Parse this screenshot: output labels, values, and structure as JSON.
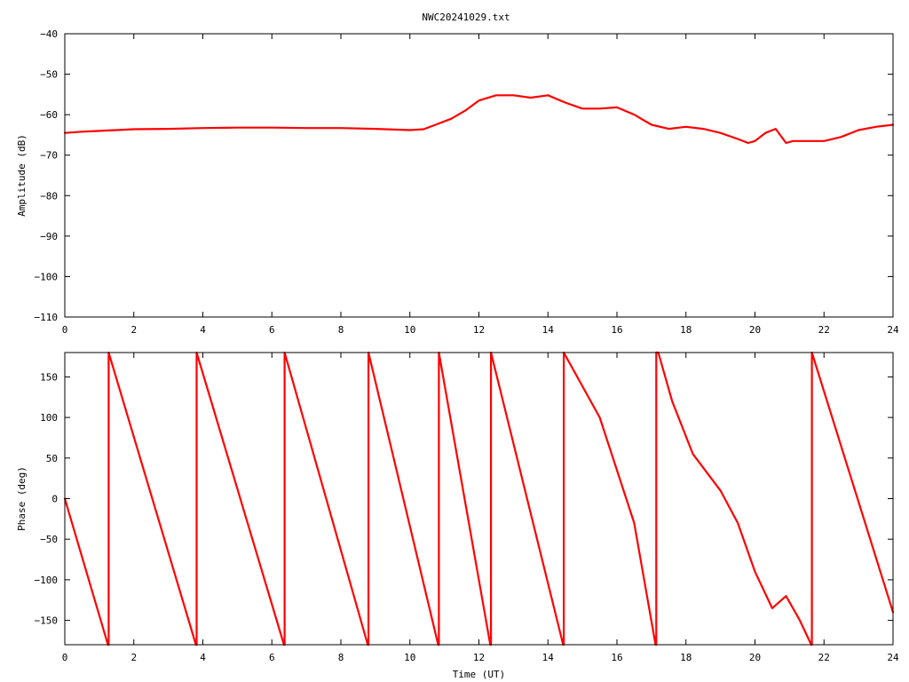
{
  "chart_title": "NWC20241029.txt",
  "chart_data": [
    {
      "type": "line",
      "title": "NWC20241029.txt",
      "xlabel": "",
      "ylabel": "Amplitude (dB)",
      "xlim": [
        0,
        24
      ],
      "ylim": [
        -110,
        -40
      ],
      "xticks": [
        0,
        2,
        4,
        6,
        8,
        10,
        12,
        14,
        16,
        18,
        20,
        22,
        24
      ],
      "yticks": [
        -40,
        -50,
        -60,
        -70,
        -80,
        -90,
        -100,
        -110
      ],
      "grid": false,
      "series": [
        {
          "color": "#ff0000",
          "x": [
            0,
            0.5,
            1,
            1.5,
            2,
            3,
            4,
            5,
            6,
            7,
            8,
            9,
            10,
            10.4,
            10.8,
            11.2,
            11.6,
            12,
            12.5,
            13,
            13.5,
            14,
            14.5,
            15,
            15.5,
            16,
            16.5,
            17,
            17.5,
            18,
            18.5,
            19,
            19.5,
            19.8,
            20,
            20.3,
            20.6,
            20.9,
            21.1,
            21.5,
            22,
            22.5,
            23,
            23.5,
            24
          ],
          "y": [
            -64.5,
            -64.2,
            -64,
            -63.8,
            -63.6,
            -63.5,
            -63.3,
            -63.2,
            -63.2,
            -63.3,
            -63.3,
            -63.5,
            -63.8,
            -63.6,
            -62.3,
            -61,
            -59,
            -56.5,
            -55.2,
            -55.2,
            -55.8,
            -55.2,
            -57,
            -58.5,
            -58.5,
            -58.2,
            -60,
            -62.5,
            -63.5,
            -63,
            -63.5,
            -64.5,
            -66,
            -67,
            -66.5,
            -64.5,
            -63.5,
            -67,
            -66.5,
            -66.5,
            -66.5,
            -65.5,
            -63.8,
            -63,
            -62.5
          ]
        }
      ]
    },
    {
      "type": "line",
      "title": "",
      "xlabel": "Time (UT)",
      "ylabel": "Phase (deg)",
      "xlim": [
        0,
        24
      ],
      "ylim": [
        -180,
        180
      ],
      "xticks": [
        0,
        2,
        4,
        6,
        8,
        10,
        12,
        14,
        16,
        18,
        20,
        22,
        24
      ],
      "yticks": [
        150,
        100,
        50,
        0,
        -50,
        -100,
        -150
      ],
      "grid": false,
      "series": [
        {
          "color": "#ff0000",
          "x": [
            0,
            1.25,
            1.27,
            1.27,
            3.8,
            3.82,
            3.82,
            6.35,
            6.37,
            6.37,
            8.78,
            8.8,
            8.8,
            10.82,
            10.84,
            10.84,
            12.33,
            12.35,
            12.35,
            14.44,
            14.46,
            14.46,
            15.5,
            16.5,
            17.12,
            17.14,
            17.14,
            17.2,
            17.6,
            18.2,
            19,
            19.5,
            20,
            20.5,
            20.9,
            21.1,
            21.3,
            21.63,
            21.65,
            21.65,
            24
          ],
          "y": [
            0,
            -180,
            -180,
            180,
            -180,
            -180,
            180,
            -180,
            -180,
            180,
            -180,
            -180,
            180,
            -180,
            -180,
            180,
            -180,
            -180,
            180,
            -180,
            -180,
            180,
            100,
            -30,
            -180,
            -180,
            180,
            180,
            120,
            55,
            10,
            -30,
            -90,
            -135,
            -120,
            -135,
            -150,
            -180,
            -180,
            180,
            -140
          ]
        }
      ]
    }
  ]
}
